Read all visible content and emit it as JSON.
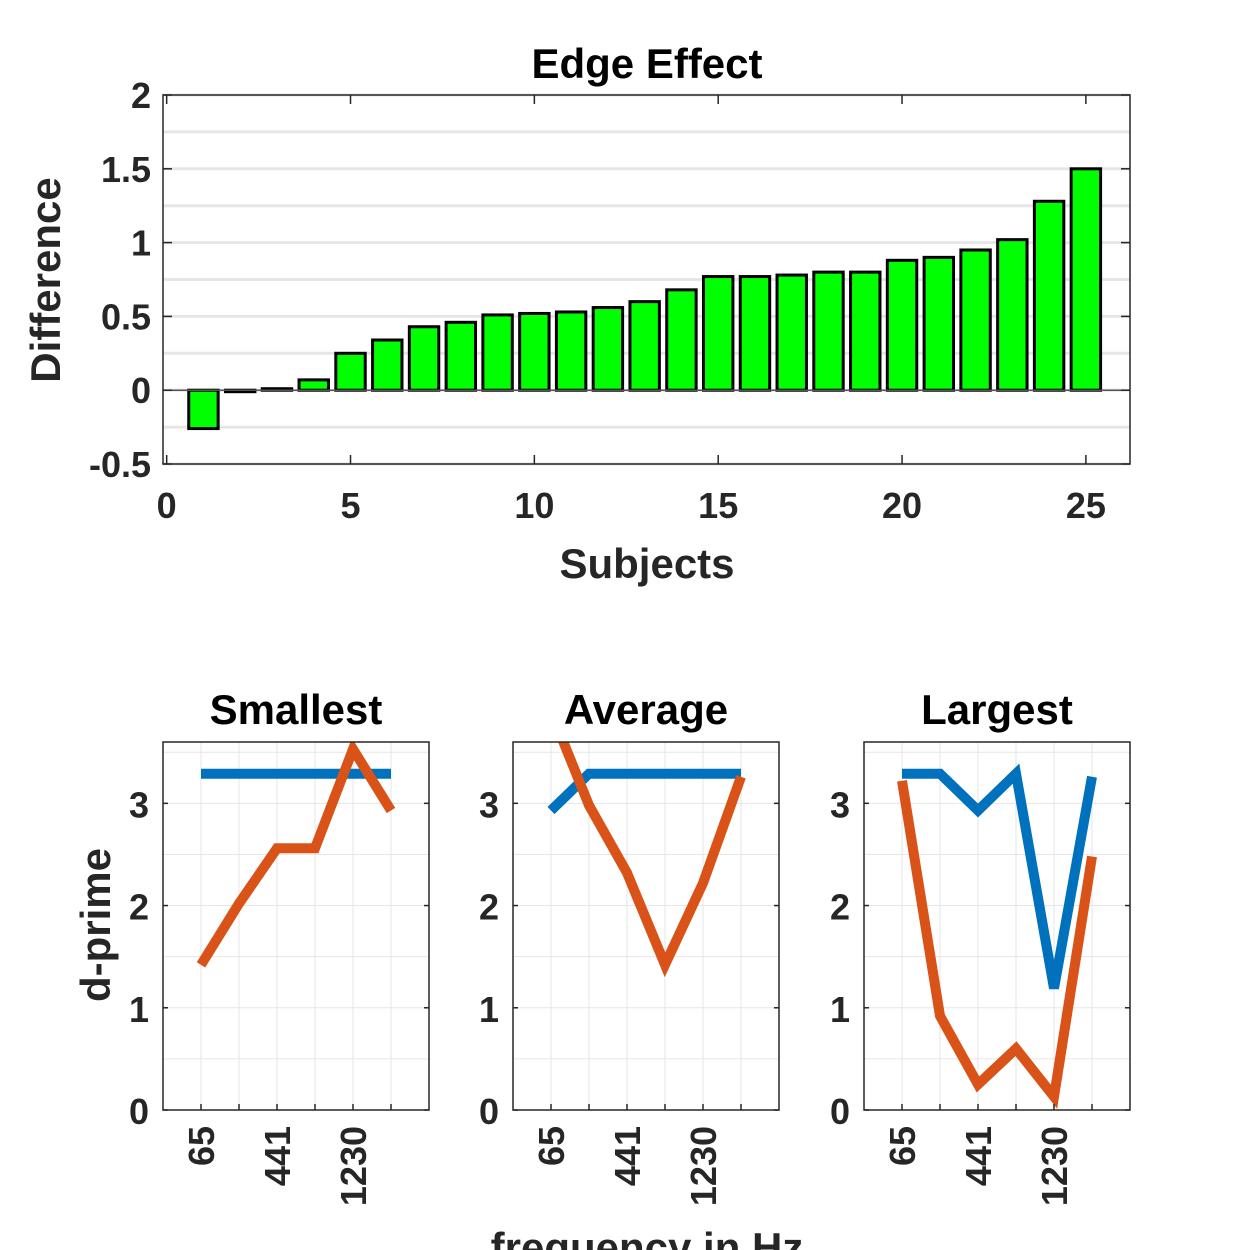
{
  "colors": {
    "bar_fill": "#00ff00",
    "bar_edge": "#000000",
    "series_blue": "#0072bd",
    "series_orange": "#d95319",
    "grid": "#e6e6e6",
    "axis": "#262626"
  },
  "chart_data": [
    {
      "type": "bar",
      "title": "Edge Effect",
      "xlabel": "Subjects",
      "ylabel": "Difference",
      "xlim": [
        -0.1,
        26.2
      ],
      "ylim": [
        -0.5,
        2
      ],
      "xticks": [
        "0",
        "5",
        "10",
        "15",
        "20",
        "25"
      ],
      "yticks": [
        "-0.5",
        "0",
        "0.5",
        "1",
        "1.5",
        "2"
      ],
      "grid": "horizontal",
      "categories": [
        1,
        2,
        3,
        4,
        5,
        6,
        7,
        8,
        9,
        10,
        11,
        12,
        13,
        14,
        15,
        16,
        17,
        18,
        19,
        20,
        21,
        22,
        23,
        24,
        25
      ],
      "values": [
        -0.26,
        0.0,
        0.01,
        0.07,
        0.25,
        0.34,
        0.43,
        0.46,
        0.51,
        0.52,
        0.53,
        0.56,
        0.6,
        0.68,
        0.77,
        0.77,
        0.78,
        0.8,
        0.8,
        0.88,
        0.9,
        0.95,
        1.02,
        1.28,
        1.5
      ]
    },
    {
      "type": "line",
      "title": "Smallest",
      "ylabel": "d-prime",
      "xlabel": "frequency in Hz",
      "ylim": [
        0,
        3.6
      ],
      "yticks": [
        "0",
        "1",
        "2",
        "3"
      ],
      "xticks": [
        "65",
        "441",
        "1230"
      ],
      "x": [
        1,
        2,
        3,
        4,
        5,
        6
      ],
      "series": [
        {
          "color": "#0072bd",
          "values": [
            3.29,
            3.29,
            3.29,
            3.29,
            3.29,
            3.29
          ]
        },
        {
          "color": "#d95319",
          "values": [
            1.42,
            2.02,
            2.56,
            2.56,
            3.53,
            2.93
          ]
        }
      ]
    },
    {
      "type": "line",
      "title": "Average",
      "ylim": [
        0,
        3.6
      ],
      "yticks": [
        "0",
        "1",
        "2",
        "3"
      ],
      "xticks": [
        "65",
        "441",
        "1230"
      ],
      "x": [
        1,
        2,
        3,
        4,
        5,
        6
      ],
      "series": [
        {
          "color": "#0072bd",
          "values": [
            2.93,
            3.29,
            3.29,
            3.29,
            3.29,
            3.29
          ]
        },
        {
          "color": "#d95319",
          "values": [
            3.9,
            2.98,
            2.32,
            1.42,
            2.22,
            3.26
          ]
        }
      ]
    },
    {
      "type": "line",
      "title": "Largest",
      "ylim": [
        0,
        3.6
      ],
      "yticks": [
        "0",
        "1",
        "2",
        "3"
      ],
      "xticks": [
        "65",
        "441",
        "1230"
      ],
      "x": [
        1,
        2,
        3,
        4,
        5,
        6
      ],
      "series": [
        {
          "color": "#0072bd",
          "values": [
            3.29,
            3.29,
            2.93,
            3.29,
            1.19,
            3.26
          ]
        },
        {
          "color": "#d95319",
          "values": [
            3.22,
            0.92,
            0.25,
            0.6,
            0.13,
            2.48
          ]
        }
      ]
    }
  ]
}
